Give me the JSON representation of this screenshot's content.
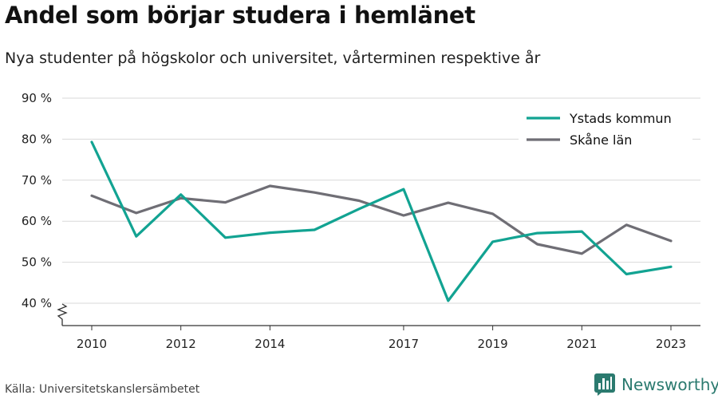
{
  "title": "Andel som börjar studera i hemlänet",
  "subtitle": "Nya studenter på högskolor och universitet, vårterminen respektive år",
  "source": "Källa: Universitetskanslersämbetet",
  "brand": "Newsworthy",
  "colors": {
    "ystad": "#12a392",
    "skane": "#6f6e75",
    "grid": "#d9d9d9",
    "brand": "#2b7a6f"
  },
  "chart_data": {
    "type": "line",
    "ylim": [
      40,
      90
    ],
    "y_ticks": [
      40,
      50,
      60,
      70,
      80,
      90
    ],
    "y_tick_labels": [
      "40 %",
      "50 %",
      "60 %",
      "70 %",
      "80 %",
      "90 %"
    ],
    "x_range": [
      2010,
      2023
    ],
    "x_ticks": [
      2010,
      2012,
      2014,
      2017,
      2019,
      2021,
      2023
    ],
    "x_tick_labels": [
      "2010",
      "2012",
      "2014",
      "2017",
      "2019",
      "2021",
      "2023"
    ],
    "grid": true,
    "legend_position": "top-right",
    "y_axis_break": true,
    "series": [
      {
        "name": "Ystads kommun",
        "color": "#12a392",
        "x": [
          2010,
          2011,
          2012,
          2013,
          2014,
          2015,
          2016,
          2017,
          2018,
          2019,
          2020,
          2021,
          2022,
          2023
        ],
        "values": [
          79.3,
          56.3,
          66.5,
          56.0,
          57.2,
          57.9,
          63.0,
          67.8,
          40.6,
          55.0,
          57.1,
          57.5,
          47.1,
          48.9
        ]
      },
      {
        "name": "Skåne län",
        "color": "#6f6e75",
        "x": [
          2010,
          2011,
          2012,
          2013,
          2014,
          2015,
          2016,
          2017,
          2018,
          2019,
          2020,
          2021,
          2022,
          2023
        ],
        "values": [
          66.2,
          62.0,
          65.6,
          64.6,
          68.6,
          67.0,
          65.0,
          61.4,
          64.5,
          61.8,
          54.4,
          52.1,
          59.1,
          55.2
        ]
      }
    ]
  }
}
